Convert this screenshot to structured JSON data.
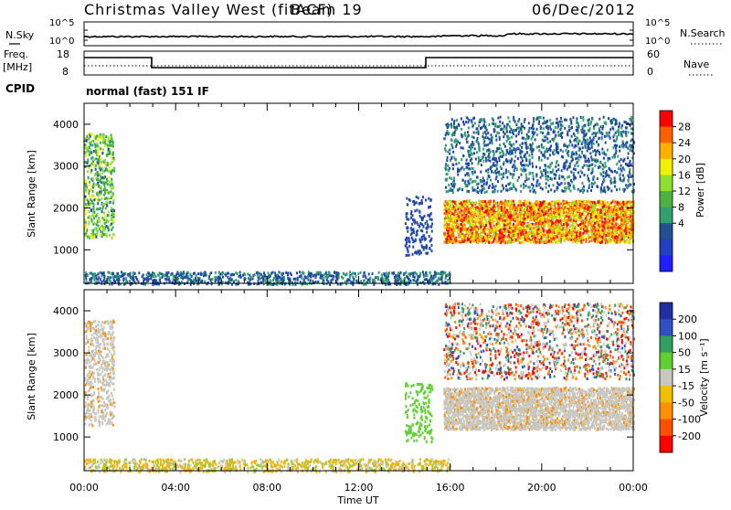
{
  "header": {
    "title": "Christmas Valley West (fitACF)",
    "beam": "Beam 19",
    "date": "06/Dec/2012"
  },
  "noise_panel": {
    "left_label": "N.Sky",
    "right_label": "N.Search",
    "left_ticks": [
      "10^5",
      "10^0"
    ],
    "right_ticks": [
      "10^5",
      "10^0"
    ]
  },
  "freq_panel": {
    "left_label_line1": "Freq.",
    "left_label_line2": "[MHz]",
    "right_label": "Nave",
    "left_ticks": [
      "18",
      "8"
    ],
    "right_ticks": [
      "60",
      "0"
    ],
    "cpid_label": "CPID",
    "cpid_text": "normal (fast) 151 IF"
  },
  "power_panel": {
    "ylabel": "Slant Range [km]",
    "colorbar_label": "Power [dB]",
    "colorbar_ticks": [
      "28",
      "24",
      "20",
      "16",
      "12",
      "8",
      "4"
    ],
    "colorbar_colors": [
      "#ff0000",
      "#ff6000",
      "#ffb000",
      "#f0f000",
      "#90e030",
      "#50b040",
      "#30a070",
      "#205090",
      "#2040c0",
      "#2020ff"
    ]
  },
  "velocity_panel": {
    "ylabel": "Slant Range [km]",
    "colorbar_label": "Velocity [m s⁻¹]",
    "colorbar_ticks": [
      "200",
      "100",
      "50",
      "15",
      "-15",
      "-50",
      "-100",
      "-200"
    ],
    "colorbar_colors": [
      "#2030a0",
      "#3050c0",
      "#30a060",
      "#60d030",
      "#c8c8c0",
      "#f0c000",
      "#ff9000",
      "#ff5000",
      "#ff0000"
    ]
  },
  "xaxis": {
    "label": "Time UT",
    "ticks": [
      "00:00",
      "04:00",
      "08:00",
      "12:00",
      "16:00",
      "20:00",
      "00:00"
    ]
  },
  "chart_data": [
    {
      "type": "heatmap",
      "title": "Christmas Valley West (fitACF) Beam 19 06/Dec/2012",
      "quantity": "Power",
      "xlabel": "Time UT",
      "ylabel": "Slant Range [km]",
      "xlim": [
        "00:00",
        "24:00"
      ],
      "ylim": [
        200,
        4500
      ],
      "y_ticks": [
        1000,
        2000,
        3000,
        4000
      ],
      "colorbar": {
        "label": "Power [dB]",
        "range": [
          0,
          30
        ],
        "ticks": [
          4,
          8,
          12,
          16,
          20,
          24,
          28
        ]
      },
      "regions": [
        {
          "t_start_h": 0.0,
          "t_end_h": 1.3,
          "range_km": [
            1300,
            3800
          ],
          "power_db": "8-20"
        },
        {
          "t_start_h": 0.0,
          "t_end_h": 16.0,
          "range_km": [
            200,
            500
          ],
          "power_db": "4-12"
        },
        {
          "t_start_h": 14.0,
          "t_end_h": 15.2,
          "range_km": [
            900,
            2300
          ],
          "power_db": "4-8"
        },
        {
          "t_start_h": 15.7,
          "t_end_h": 24.0,
          "range_km": [
            1200,
            2200
          ],
          "power_db": "16-30"
        },
        {
          "t_start_h": 15.7,
          "t_end_h": 24.0,
          "range_km": [
            2400,
            4200
          ],
          "power_db": "4-12"
        }
      ]
    },
    {
      "type": "heatmap",
      "quantity": "Velocity",
      "xlabel": "Time UT",
      "ylabel": "Slant Range [km]",
      "xlim": [
        "00:00",
        "24:00"
      ],
      "ylim": [
        200,
        4500
      ],
      "y_ticks": [
        1000,
        2000,
        3000,
        4000
      ],
      "colorbar": {
        "label": "Velocity [m s-1]",
        "range": [
          -250,
          250
        ],
        "ticks": [
          200,
          100,
          50,
          15,
          -15,
          -50,
          -100,
          -200
        ]
      },
      "regions": [
        {
          "t_start_h": 0.0,
          "t_end_h": 1.3,
          "range_km": [
            1300,
            3800
          ],
          "velocity": "-15 to 15, some -50"
        },
        {
          "t_start_h": 0.0,
          "t_end_h": 16.0,
          "range_km": [
            200,
            500
          ],
          "velocity": "-50 to 50"
        },
        {
          "t_start_h": 14.0,
          "t_end_h": 15.2,
          "range_km": [
            900,
            2300
          ],
          "velocity": "15 to 50"
        },
        {
          "t_start_h": 15.7,
          "t_end_h": 24.0,
          "range_km": [
            1200,
            2200
          ],
          "velocity": "-15 to 15"
        },
        {
          "t_start_h": 15.7,
          "t_end_h": 24.0,
          "range_km": [
            2400,
            4200
          ],
          "velocity": "-200 to 100"
        }
      ]
    }
  ]
}
